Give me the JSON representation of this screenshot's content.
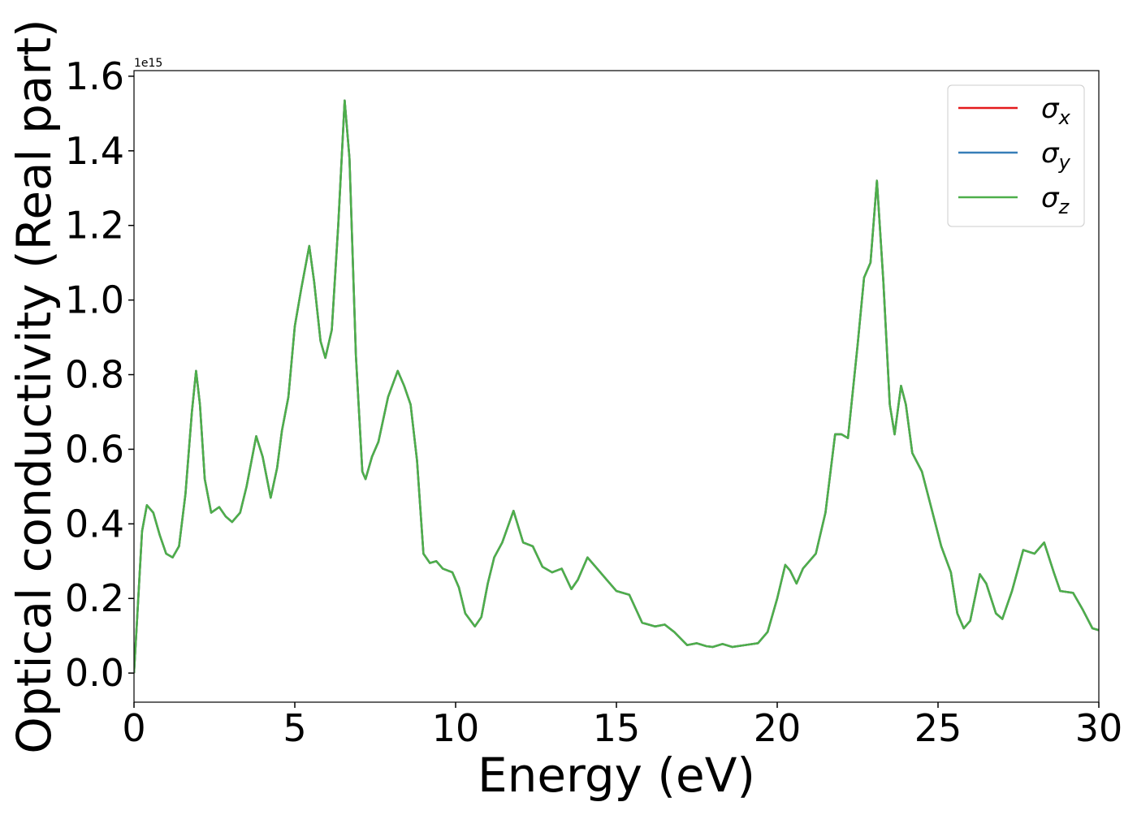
{
  "chart_data": {
    "type": "line",
    "x_label": "Energy (eV)",
    "y_label": "Optical conductivity (Real part)",
    "y_offset_text": "1e15",
    "xlim": [
      0,
      30
    ],
    "xticks": [
      0,
      5,
      10,
      15,
      20,
      25,
      30
    ],
    "ylim": [
      -0.078,
      1.615
    ],
    "yticks": [
      {
        "value": 0,
        "label": "0.0"
      },
      0.2,
      0.4,
      0.6,
      0.8,
      {
        "value": 1,
        "label": "1.0"
      },
      1.2,
      1.4,
      1.6
    ],
    "legend": "upper right",
    "x": [
      0,
      0.1,
      0.25,
      0.4,
      0.6,
      0.8,
      1.0,
      1.2,
      1.4,
      1.6,
      1.8,
      1.93,
      2.05,
      2.2,
      2.4,
      2.65,
      2.85,
      3.05,
      3.3,
      3.5,
      3.8,
      4.0,
      4.25,
      4.45,
      4.6,
      4.8,
      5.0,
      5.2,
      5.45,
      5.6,
      5.8,
      5.95,
      6.15,
      6.35,
      6.55,
      6.7,
      6.9,
      7.1,
      7.2,
      7.4,
      7.6,
      7.9,
      8.2,
      8.4,
      8.6,
      8.8,
      9.0,
      9.2,
      9.4,
      9.6,
      9.9,
      10.1,
      10.3,
      10.6,
      10.8,
      11.0,
      11.2,
      11.45,
      11.8,
      12.1,
      12.4,
      12.7,
      13.0,
      13.3,
      13.6,
      13.8,
      14.1,
      14.4,
      14.7,
      15.0,
      15.4,
      15.8,
      16.2,
      16.5,
      16.8,
      17.2,
      17.5,
      17.8,
      18.0,
      18.3,
      18.6,
      19.0,
      19.4,
      19.7,
      20.0,
      20.25,
      20.4,
      20.6,
      20.8,
      21.2,
      21.5,
      21.8,
      22.0,
      22.2,
      22.5,
      22.7,
      22.9,
      23.1,
      23.3,
      23.5,
      23.65,
      23.85,
      24.0,
      24.2,
      24.5,
      24.8,
      25.1,
      25.4,
      25.6,
      25.8,
      26.0,
      26.3,
      26.5,
      26.8,
      27.0,
      27.3,
      27.65,
      28.0,
      28.3,
      28.6,
      28.8,
      29.2,
      29.5,
      29.8,
      30.0
    ],
    "series": [
      {
        "name": "σx",
        "color": "#e41a1c",
        "values": [
          0,
          0.15,
          0.38,
          0.45,
          0.43,
          0.37,
          0.32,
          0.31,
          0.34,
          0.48,
          0.7,
          0.81,
          0.72,
          0.52,
          0.43,
          0.445,
          0.42,
          0.405,
          0.43,
          0.5,
          0.635,
          0.58,
          0.47,
          0.55,
          0.65,
          0.74,
          0.93,
          1.03,
          1.145,
          1.05,
          0.89,
          0.845,
          0.92,
          1.2,
          1.535,
          1.38,
          0.85,
          0.54,
          0.52,
          0.58,
          0.62,
          0.74,
          0.81,
          0.77,
          0.72,
          0.57,
          0.32,
          0.295,
          0.3,
          0.28,
          0.27,
          0.23,
          0.16,
          0.125,
          0.15,
          0.24,
          0.31,
          0.35,
          0.435,
          0.35,
          0.34,
          0.285,
          0.27,
          0.28,
          0.225,
          0.25,
          0.31,
          0.28,
          0.25,
          0.22,
          0.21,
          0.135,
          0.125,
          0.13,
          0.11,
          0.075,
          0.08,
          0.072,
          0.07,
          0.078,
          0.07,
          0.075,
          0.08,
          0.11,
          0.2,
          0.29,
          0.275,
          0.24,
          0.28,
          0.32,
          0.43,
          0.64,
          0.64,
          0.63,
          0.88,
          1.06,
          1.1,
          1.32,
          1.05,
          0.72,
          0.64,
          0.77,
          0.72,
          0.59,
          0.54,
          0.44,
          0.34,
          0.27,
          0.16,
          0.12,
          0.14,
          0.265,
          0.24,
          0.16,
          0.145,
          0.22,
          0.33,
          0.32,
          0.35,
          0.27,
          0.22,
          0.215,
          0.17,
          0.12,
          0.115
        ]
      },
      {
        "name": "σy",
        "color": "#377eb8",
        "values": [
          0,
          0.15,
          0.38,
          0.45,
          0.43,
          0.37,
          0.32,
          0.31,
          0.34,
          0.48,
          0.7,
          0.81,
          0.72,
          0.52,
          0.43,
          0.445,
          0.42,
          0.405,
          0.43,
          0.5,
          0.635,
          0.58,
          0.47,
          0.55,
          0.65,
          0.74,
          0.93,
          1.03,
          1.145,
          1.05,
          0.89,
          0.845,
          0.92,
          1.2,
          1.535,
          1.38,
          0.85,
          0.54,
          0.52,
          0.58,
          0.62,
          0.74,
          0.81,
          0.77,
          0.72,
          0.57,
          0.32,
          0.295,
          0.3,
          0.28,
          0.27,
          0.23,
          0.16,
          0.125,
          0.15,
          0.24,
          0.31,
          0.35,
          0.435,
          0.35,
          0.34,
          0.285,
          0.27,
          0.28,
          0.225,
          0.25,
          0.31,
          0.28,
          0.25,
          0.22,
          0.21,
          0.135,
          0.125,
          0.13,
          0.11,
          0.075,
          0.08,
          0.072,
          0.07,
          0.078,
          0.07,
          0.075,
          0.08,
          0.11,
          0.2,
          0.29,
          0.275,
          0.24,
          0.28,
          0.32,
          0.43,
          0.64,
          0.64,
          0.63,
          0.88,
          1.06,
          1.1,
          1.32,
          1.05,
          0.72,
          0.64,
          0.77,
          0.72,
          0.59,
          0.54,
          0.44,
          0.34,
          0.27,
          0.16,
          0.12,
          0.14,
          0.265,
          0.24,
          0.16,
          0.145,
          0.22,
          0.33,
          0.32,
          0.35,
          0.27,
          0.22,
          0.215,
          0.17,
          0.12,
          0.115
        ]
      },
      {
        "name": "σz",
        "color": "#4daf4a",
        "values": [
          0,
          0.15,
          0.38,
          0.45,
          0.43,
          0.37,
          0.32,
          0.31,
          0.34,
          0.48,
          0.7,
          0.81,
          0.72,
          0.52,
          0.43,
          0.445,
          0.42,
          0.405,
          0.43,
          0.5,
          0.635,
          0.58,
          0.47,
          0.55,
          0.65,
          0.74,
          0.93,
          1.03,
          1.145,
          1.05,
          0.89,
          0.845,
          0.92,
          1.2,
          1.535,
          1.38,
          0.85,
          0.54,
          0.52,
          0.58,
          0.62,
          0.74,
          0.81,
          0.77,
          0.72,
          0.57,
          0.32,
          0.295,
          0.3,
          0.28,
          0.27,
          0.23,
          0.16,
          0.125,
          0.15,
          0.24,
          0.31,
          0.35,
          0.435,
          0.35,
          0.34,
          0.285,
          0.27,
          0.28,
          0.225,
          0.25,
          0.31,
          0.28,
          0.25,
          0.22,
          0.21,
          0.135,
          0.125,
          0.13,
          0.11,
          0.075,
          0.08,
          0.072,
          0.07,
          0.078,
          0.07,
          0.075,
          0.08,
          0.11,
          0.2,
          0.29,
          0.275,
          0.24,
          0.28,
          0.32,
          0.43,
          0.64,
          0.64,
          0.63,
          0.88,
          1.06,
          1.1,
          1.32,
          1.05,
          0.72,
          0.64,
          0.77,
          0.72,
          0.59,
          0.54,
          0.44,
          0.34,
          0.27,
          0.16,
          0.12,
          0.14,
          0.265,
          0.24,
          0.16,
          0.145,
          0.22,
          0.33,
          0.32,
          0.35,
          0.27,
          0.22,
          0.215,
          0.17,
          0.12,
          0.115
        ]
      }
    ]
  }
}
